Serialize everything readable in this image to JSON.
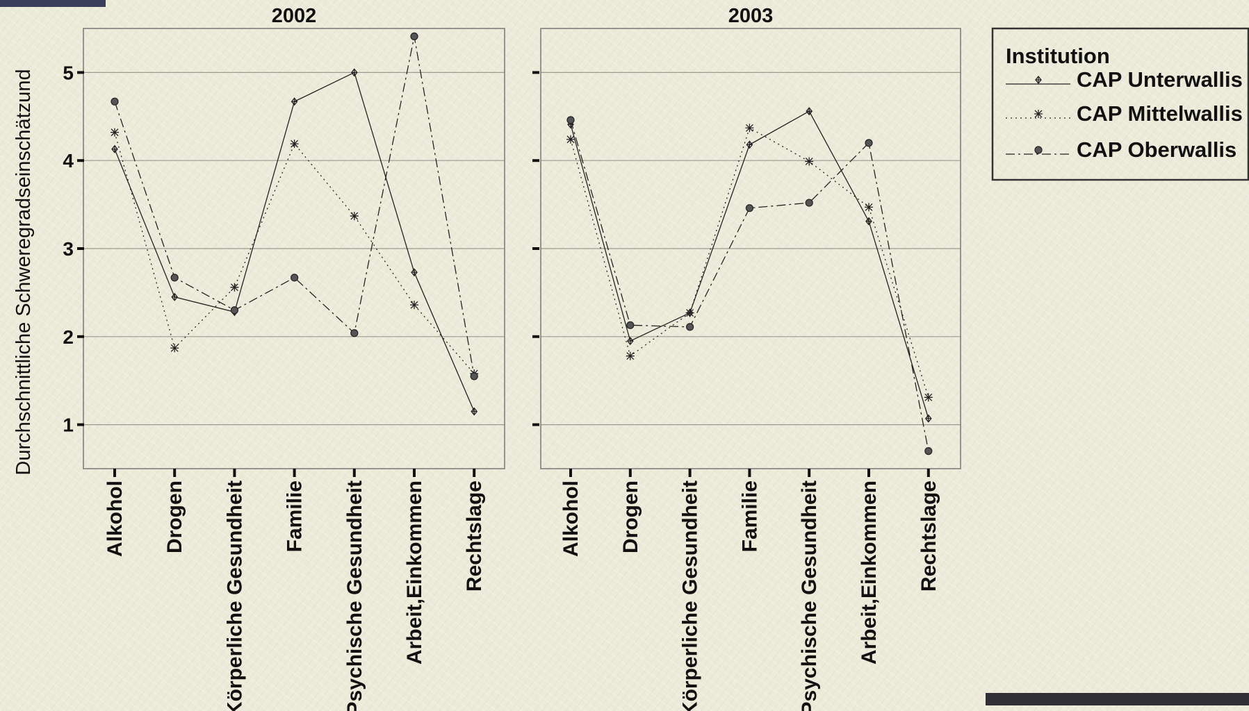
{
  "chart_data": {
    "type": "line",
    "ylabel": "Durchschnittliche Schweregradseinschätzund",
    "ylim": [
      0.5,
      5.5
    ],
    "yticks": [
      1,
      2,
      3,
      4,
      5
    ],
    "grid": true,
    "legend_title": "Institution",
    "legend_position": "right",
    "categories": [
      "Alkohol",
      "Drogen",
      "Körperliche Gesundheit",
      "Familie",
      "Psychische Gesundheit",
      "Arbeit,Einkommen",
      "Rechtslage"
    ],
    "panels": [
      {
        "title": "2002",
        "series": [
          {
            "name": "CAP Unterwallis",
            "values": [
              4.13,
              2.45,
              2.28,
              4.67,
              5.0,
              2.73,
              1.15
            ]
          },
          {
            "name": "CAP Mittelwallis",
            "values": [
              4.32,
              1.87,
              2.56,
              4.19,
              3.37,
              2.36,
              1.58
            ]
          },
          {
            "name": "CAP Oberwallis",
            "values": [
              4.67,
              2.67,
              2.3,
              2.67,
              2.04,
              5.41,
              1.55
            ]
          }
        ]
      },
      {
        "title": "2003",
        "series": [
          {
            "name": "CAP Unterwallis",
            "values": [
              4.41,
              1.95,
              2.27,
              4.18,
              4.56,
              3.31,
              1.07
            ]
          },
          {
            "name": "CAP Mittelwallis",
            "values": [
              4.24,
              1.78,
              2.27,
              4.37,
              3.99,
              3.47,
              1.31
            ]
          },
          {
            "name": "CAP Oberwallis",
            "values": [
              4.46,
              2.13,
              2.11,
              3.46,
              3.52,
              4.2,
              0.7
            ]
          }
        ]
      }
    ],
    "series_styles": [
      {
        "name": "CAP Unterwallis",
        "dash": "solid",
        "marker": "diamond-plus"
      },
      {
        "name": "CAP Mittelwallis",
        "dash": "dotted",
        "marker": "star"
      },
      {
        "name": "CAP Oberwallis",
        "dash": "dashdot",
        "marker": "circle"
      }
    ],
    "colors": {
      "line": "#222222",
      "grid": "#9a9a90",
      "frame": "#777777"
    }
  }
}
